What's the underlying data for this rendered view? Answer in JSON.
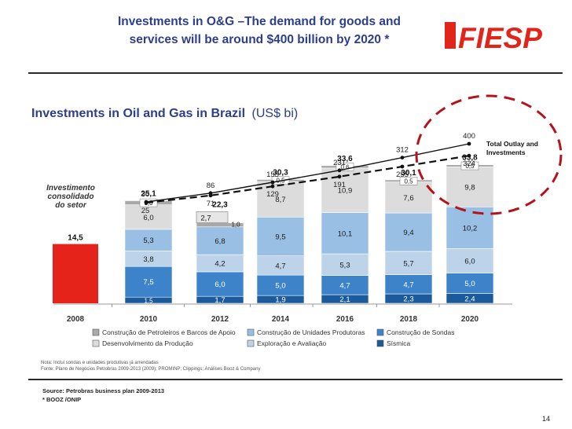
{
  "slide": {
    "title_line1": "Investments in O&G –The demand for goods and",
    "title_line2": "services will be around $400 billion by 2020 *",
    "logo_text": "FIESP",
    "page_number": "14",
    "source_line1": "Source:  Petrobras business plan 2009-2013",
    "source_line2": "* BOOZ /ONIP",
    "note_line1": "Nota:     Inclui sondas e unidades produtivas já arrendadas",
    "note_line2": "Fonte:    Plano de Negócios Petrobras 2009-2013 (2009); PROMINP; Clippings; Análises Booz & Company",
    "colors": {
      "title_blue": "#2c3e8c",
      "logo_red": "#e1251b",
      "callout_red": "#b4131a"
    }
  },
  "chart_data": {
    "type": "bar",
    "title": "Investments in Oil and Gas in Brazil",
    "unit": "(US$ bi)",
    "categories": [
      "2008",
      "2010",
      "2012",
      "2014",
      "2016",
      "2018",
      "2020"
    ],
    "series": [
      {
        "name": "Sísmica",
        "color": "#1b5a9b",
        "values": [
          null,
          1.5,
          1.7,
          1.9,
          2.1,
          2.3,
          2.4
        ]
      },
      {
        "name": "Construção de Sondas",
        "color": "#3d83c9",
        "values": [
          null,
          7.5,
          6.0,
          5.0,
          4.7,
          4.7,
          5.0
        ]
      },
      {
        "name": "Exploração e Avaliação",
        "color": "#bcd3ea",
        "values": [
          null,
          3.8,
          4.2,
          4.7,
          5.3,
          5.7,
          6.0
        ]
      },
      {
        "name": "Construção de Unidades Produtoras",
        "color": "#99bfe5",
        "values": [
          null,
          5.3,
          6.8,
          9.5,
          10.1,
          9.4,
          10.2
        ]
      },
      {
        "name": "Desenvolvimento da Produção",
        "color": "#dcdcdc",
        "values": [
          null,
          6.0,
          null,
          8.7,
          10.9,
          7.6,
          9.8
        ]
      },
      {
        "name": "Construção de Petroleiros e Barcos de Apoio",
        "color": "#a9a9a9",
        "values": [
          null,
          1.0,
          1.0,
          0.5,
          0.6,
          0.5,
          0.5
        ]
      }
    ],
    "extra_segment_2012": {
      "label": "2,7",
      "value": 2.7
    },
    "single_bar_2008": {
      "label": "14,5",
      "value": 14.5,
      "color": "#e5231b"
    },
    "bar_totals": [
      "",
      "25,1",
      "22,3",
      "30,3",
      "33,6",
      "30,1",
      "33,8"
    ],
    "segment_labels": {
      "Sísmica": [
        "",
        "1,5",
        "1,7",
        "1,9",
        "2,1",
        "2,3",
        "2,4"
      ],
      "Construção de Sondas": [
        "",
        "7,5",
        "6,0",
        "5,0",
        "4,7",
        "4,7",
        "5,0"
      ],
      "Exploração e Avaliação": [
        "",
        "3,8",
        "4,2",
        "4,7",
        "5,3",
        "5,7",
        "6,0"
      ],
      "Construção de Unidades Produtoras": [
        "",
        "5,3",
        "6,8",
        "9,5",
        "10,1",
        "9,4",
        "10,2"
      ],
      "Desenvolvimento da Produção": [
        "",
        "6,0",
        "",
        "8,7",
        "10,9",
        "7,6",
        "9,8"
      ],
      "Construção de Petroleiros e Barcos de Apoio": [
        "",
        "1,0",
        "1,0",
        "0,5",
        "0,6",
        "0,5",
        "0,5"
      ]
    },
    "lines": [
      {
        "name": "Total Outlay and Investments",
        "style": "solid",
        "x": [
          "2010",
          "2012",
          "2014",
          "2016",
          "2018",
          "2020"
        ],
        "values": [
          30,
          86,
          155,
          231,
          312,
          400
        ],
        "labels": [
          "30",
          "86",
          "155",
          "231",
          "312",
          "400"
        ]
      },
      {
        "name": "",
        "style": "dashed",
        "x": [
          "2010",
          "2012",
          "2014",
          "2016",
          "2018",
          "2020"
        ],
        "values": [
          25,
          71,
          129,
          191,
          255,
          324
        ],
        "labels": [
          "25",
          "71",
          "129",
          "191",
          "255",
          "324"
        ]
      }
    ],
    "callout_text": "Total Outlay and Investments",
    "sector_label_lines": [
      "Investimento",
      "consolidado",
      "do setor"
    ],
    "legend_placement": "bottom",
    "legend_order": [
      "Construção de Petroleiros e Barcos de Apoio",
      "Construção de Unidades Produtoras",
      "Construção de Sondas",
      "Desenvolvimento da Produção",
      "Exploração e Avaliação",
      "Sísmica"
    ],
    "grid": false
  }
}
